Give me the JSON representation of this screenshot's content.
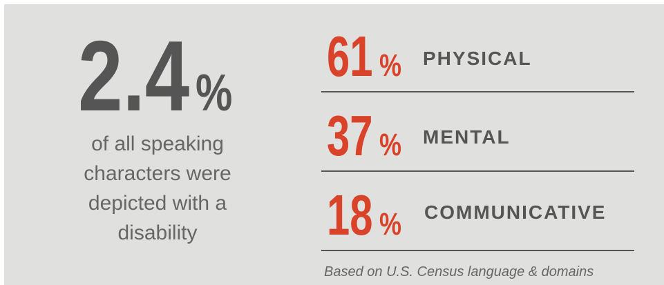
{
  "headline": {
    "value": "2.4",
    "unit": "%",
    "description": [
      "of all speaking",
      "characters were",
      "depicted with a",
      "disability"
    ]
  },
  "items": [
    {
      "value": "61",
      "unit": "%",
      "label": "PHYSICAL"
    },
    {
      "value": "37",
      "unit": "%",
      "label": "MENTAL"
    },
    {
      "value": "18",
      "unit": "%",
      "label": "COMMUNICATIVE"
    }
  ],
  "footnote": "Based on U.S. Census language & domains"
}
